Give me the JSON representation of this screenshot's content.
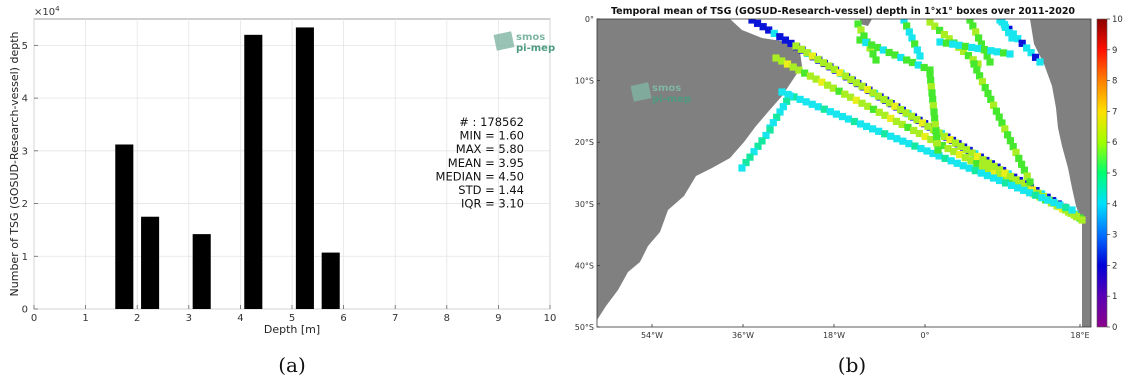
{
  "chart_data": [
    {
      "type": "bar",
      "caption": "(a)",
      "ylabel": "Number of TSG (GOSUD-Research-vessel) depth",
      "xlabel": "Depth [m]",
      "y_multiplier": "×10",
      "y_multiplier_exp": "4",
      "xlim": [
        0,
        10
      ],
      "ylim": [
        0,
        5.5
      ],
      "x_ticks": [
        "0",
        "1",
        "2",
        "3",
        "4",
        "5",
        "6",
        "7",
        "8",
        "9",
        "10"
      ],
      "y_ticks": [
        "0",
        "1",
        "2",
        "3",
        "4",
        "5"
      ],
      "grid": true,
      "bar_width": 0.35,
      "bars": [
        {
          "x": 1.75,
          "value": 3.12
        },
        {
          "x": 2.25,
          "value": 1.75
        },
        {
          "x": 3.25,
          "value": 1.42
        },
        {
          "x": 4.25,
          "value": 5.2
        },
        {
          "x": 5.25,
          "value": 5.34
        },
        {
          "x": 5.75,
          "value": 1.07
        }
      ],
      "stats": [
        "# : 178562",
        "MIN = 1.60",
        "MAX =  5.80",
        "MEAN = 3.95",
        "MEDIAN = 4.50",
        "STD = 1.44",
        "IQR = 3.10"
      ],
      "logo": {
        "line1": "smos",
        "line2": "pi-mep"
      }
    },
    {
      "type": "heatmap",
      "caption": "(b)",
      "title": "Temporal mean of TSG (GOSUD-Research-vessel) depth in 1°x1° boxes over 2011-2020",
      "lon_ticks": [
        "54°W",
        "36°W",
        "18°W",
        "0°",
        "18°E"
      ],
      "lat_ticks": [
        "0°",
        "10°S",
        "20°S",
        "30°S",
        "40°S",
        "50°S"
      ],
      "colorbar_ticks": [
        "0",
        "1",
        "2",
        "3",
        "4",
        "5",
        "6",
        "7",
        "8",
        "9",
        "10"
      ],
      "colorbar_range": [
        0,
        10
      ],
      "logo": {
        "line1": "smos",
        "line2": "pi-mep"
      }
    }
  ]
}
